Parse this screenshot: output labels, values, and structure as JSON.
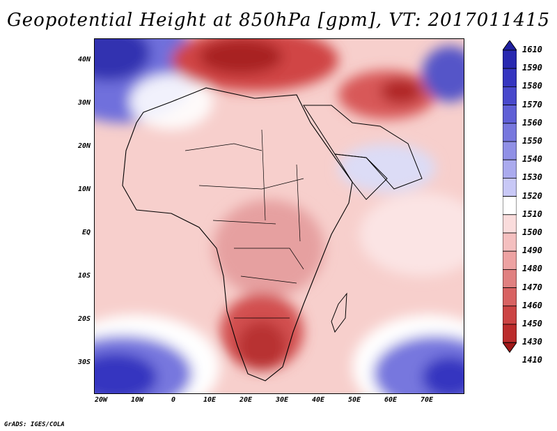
{
  "title": "Geopotential Height at 850hPa [gpm], VT: 2017011415",
  "footer": "GrADS: IGES/COLA",
  "lat_labels": [
    "40N",
    "30N",
    "20N",
    "10N",
    "EQ",
    "10S",
    "20S",
    "30S"
  ],
  "lon_labels": [
    "20W",
    "10W",
    "0",
    "10E",
    "20E",
    "30E",
    "40E",
    "50E",
    "60E",
    "70E"
  ],
  "colorbar": {
    "levels": [
      "1610",
      "1590",
      "1580",
      "1570",
      "1560",
      "1550",
      "1540",
      "1530",
      "1520",
      "1510",
      "1500",
      "1490",
      "1480",
      "1470",
      "1460",
      "1450",
      "1430",
      "1410"
    ],
    "colors": [
      "#2020a0",
      "#2828b0",
      "#3535c0",
      "#4848cc",
      "#5f5fd6",
      "#7777de",
      "#9090e6",
      "#aaaaee",
      "#c8c8f6",
      "#ffffff",
      "#fadcdc",
      "#f4bfbf",
      "#eda2a2",
      "#e08080",
      "#d86262",
      "#cc4444",
      "#bb2c2c",
      "#a01818"
    ]
  }
}
